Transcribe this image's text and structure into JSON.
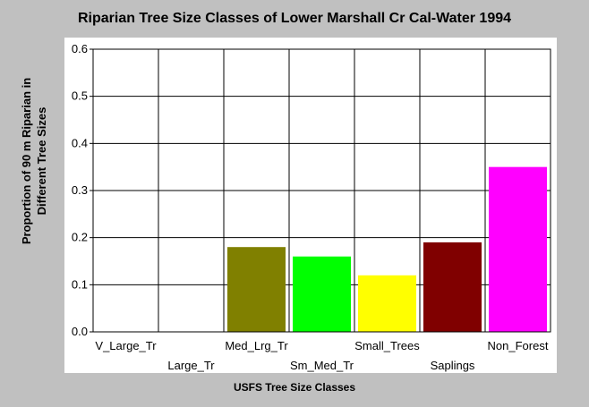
{
  "chart_data": {
    "type": "bar",
    "title": "Riparian Tree Size Classes of Lower Marshall Cr Cal-Water 1994",
    "xlabel": "USFS Tree Size Classes",
    "ylabel_lines": [
      "Proportion of 90 m Riparian in",
      "Different Tree Sizes"
    ],
    "categories": [
      "V_Large_Tr",
      "Large_Tr",
      "Med_Lrg_Tr",
      "Sm_Med_Tr",
      "Small_Trees",
      "Saplings",
      "Non_Forest"
    ],
    "values": [
      0,
      0,
      0.18,
      0.16,
      0.12,
      0.19,
      0.35
    ],
    "colors": [
      "#808080",
      "#808080",
      "#808000",
      "#00ff00",
      "#ffff00",
      "#800000",
      "#ff00ff"
    ],
    "ylim": [
      0,
      0.6
    ],
    "yticks": [
      "0.0",
      "0.1",
      "0.2",
      "0.3",
      "0.4",
      "0.5",
      "0.6"
    ],
    "grid": true,
    "legend": "none"
  }
}
